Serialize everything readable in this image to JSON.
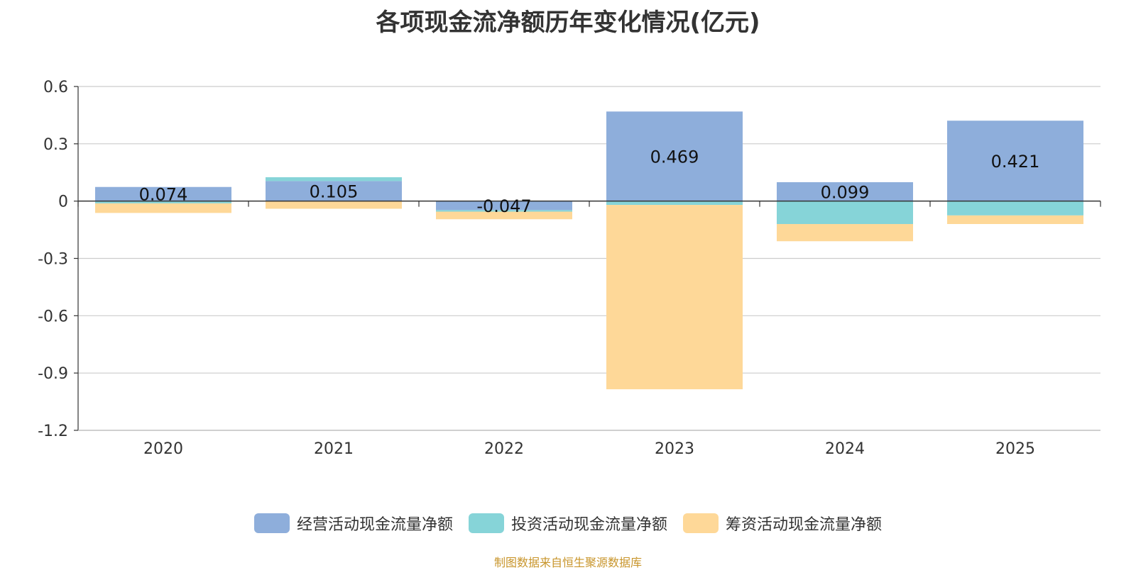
{
  "chart_data": {
    "type": "bar",
    "stacked": true,
    "title": "各项现金流净额历年变化情况(亿元)",
    "categories": [
      "2020",
      "2021",
      "2022",
      "2023",
      "2024",
      "2025"
    ],
    "ylim": [
      -1.2,
      0.6
    ],
    "yticks": [
      "0.6",
      "0.3",
      "0",
      "-0.3",
      "-0.6",
      "-0.9",
      "-1.2"
    ],
    "ytick_values": [
      0.6,
      0.3,
      0,
      -0.3,
      -0.6,
      -0.9,
      -1.2
    ],
    "grid": true,
    "legend_position": "bottom-center",
    "series": [
      {
        "name": "经营活动现金流量净额",
        "color": "#8eaedb",
        "values": [
          0.074,
          0.105,
          -0.047,
          0.469,
          0.099,
          0.421
        ],
        "labels": [
          "0.074",
          "0.105",
          "-0.047",
          "0.469",
          "0.099",
          "0.421"
        ]
      },
      {
        "name": "投资活动现金流量净额",
        "color": "#86d4d8",
        "values": [
          -0.012,
          0.02,
          -0.008,
          -0.02,
          -0.12,
          -0.075
        ]
      },
      {
        "name": "筹资活动现金流量净额",
        "color": "#fed898",
        "values": [
          -0.05,
          -0.04,
          -0.04,
          -0.965,
          -0.09,
          -0.045
        ]
      }
    ]
  },
  "source_text": "制图数据来自恒生聚源数据库",
  "source_color": "#c8952b"
}
